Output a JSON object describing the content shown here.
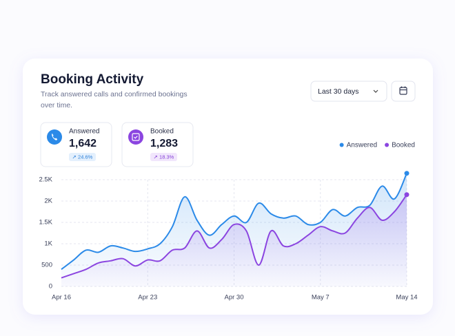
{
  "chart_data": {
    "type": "line",
    "title": "Booking Activity",
    "subtitle": "Track answered calls and confirmed bookings over time.",
    "categories": [
      "Apr 16",
      null,
      null,
      null,
      null,
      null,
      null,
      "Apr 23",
      null,
      null,
      null,
      null,
      null,
      null,
      "Apr 30",
      null,
      null,
      null,
      null,
      null,
      null,
      "May 7",
      null,
      null,
      null,
      null,
      null,
      null,
      "May 14"
    ],
    "series": [
      {
        "name": "Answered",
        "color": "#2b8ae8",
        "values": [
          400,
          620,
          850,
          800,
          950,
          900,
          820,
          880,
          1000,
          1400,
          2100,
          1550,
          1200,
          1450,
          1650,
          1500,
          1950,
          1700,
          1600,
          1650,
          1450,
          1500,
          1800,
          1650,
          1850,
          1900,
          2350,
          2050,
          2650
        ]
      },
      {
        "name": "Booked",
        "color": "#8b45e0",
        "values": [
          200,
          300,
          400,
          550,
          600,
          650,
          480,
          620,
          600,
          850,
          900,
          1300,
          900,
          1100,
          1450,
          1300,
          500,
          1300,
          950,
          1000,
          1200,
          1400,
          1300,
          1250,
          1600,
          1850,
          1550,
          1750,
          2150
        ]
      }
    ],
    "ylim": [
      0,
      2500
    ],
    "yticks": [
      0,
      500,
      {
        "value": 1000,
        "label": "1K"
      },
      {
        "value": 1500,
        "label": "1.5K"
      },
      {
        "value": 2000,
        "label": "2K"
      },
      {
        "value": 2500,
        "label": "2.5K"
      }
    ],
    "grid": true,
    "legend": "top-right"
  },
  "controls": {
    "range": "Last 30 days"
  },
  "stats": [
    {
      "label": "Answered",
      "value": "1,642",
      "change": "↗ 24.6%"
    },
    {
      "label": "Booked",
      "value": "1,283",
      "change": "↗ 18.3%"
    }
  ]
}
